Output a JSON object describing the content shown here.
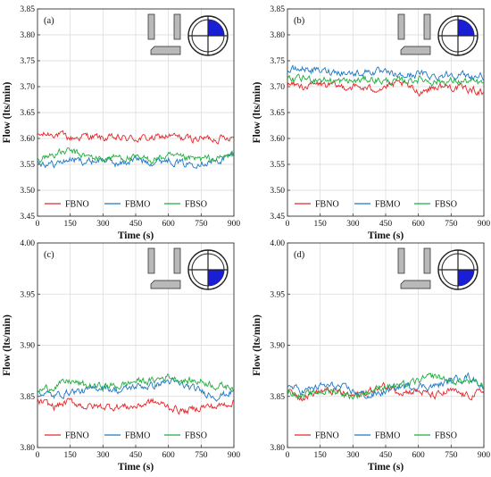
{
  "figure": {
    "line_colors": {
      "FBNO": "#e8262b",
      "FBMO": "#1f77c4",
      "FBSO": "#1fae3c"
    },
    "icon_colors": {
      "piece_fill": "#b9b9b9",
      "quadrant_fill": "#1a1fd6",
      "outline": "#222222"
    }
  },
  "chart_data": [
    {
      "type": "line",
      "panel_label": "(a)",
      "xlabel": "Time (s)",
      "ylabel": "Flow (lts/min)",
      "xlim": [
        0,
        900
      ],
      "ylim": [
        3.45,
        3.85
      ],
      "x_ticks": [
        "0",
        "150",
        "300",
        "450",
        "600",
        "750",
        "900"
      ],
      "y_ticks": [
        "3.45",
        "3.50",
        "3.55",
        "3.60",
        "3.65",
        "3.70",
        "3.75",
        "3.80",
        "3.85"
      ],
      "grid": true,
      "legend_position": "bottom",
      "icon_highlight": "upper-right quadrant",
      "x": [
        0,
        75,
        150,
        225,
        300,
        375,
        450,
        525,
        600,
        675,
        750,
        825,
        900
      ],
      "series": [
        {
          "name": "FBNO",
          "values": [
            3.605,
            3.61,
            3.6,
            3.605,
            3.6,
            3.6,
            3.6,
            3.6,
            3.605,
            3.6,
            3.6,
            3.6,
            3.605
          ]
        },
        {
          "name": "FBMO",
          "values": [
            3.555,
            3.55,
            3.56,
            3.555,
            3.56,
            3.55,
            3.56,
            3.555,
            3.56,
            3.55,
            3.555,
            3.555,
            3.57
          ]
        },
        {
          "name": "FBSO",
          "values": [
            3.56,
            3.57,
            3.575,
            3.565,
            3.56,
            3.565,
            3.56,
            3.56,
            3.565,
            3.56,
            3.56,
            3.56,
            3.57
          ]
        }
      ]
    },
    {
      "type": "line",
      "panel_label": "(b)",
      "xlabel": "Time (s)",
      "ylabel": "Flow (lts/min)",
      "xlim": [
        0,
        900
      ],
      "ylim": [
        3.45,
        3.85
      ],
      "x_ticks": [
        "0",
        "150",
        "300",
        "450",
        "600",
        "750",
        "900"
      ],
      "y_ticks": [
        "3.45",
        "3.50",
        "3.55",
        "3.60",
        "3.65",
        "3.70",
        "3.75",
        "3.80",
        "3.85"
      ],
      "grid": true,
      "legend_position": "bottom",
      "icon_highlight": "upper-right quadrant",
      "x": [
        0,
        75,
        150,
        225,
        300,
        375,
        450,
        525,
        600,
        675,
        750,
        825,
        900
      ],
      "series": [
        {
          "name": "FBNO",
          "values": [
            3.705,
            3.7,
            3.705,
            3.7,
            3.7,
            3.695,
            3.7,
            3.705,
            3.69,
            3.7,
            3.7,
            3.695,
            3.69
          ]
        },
        {
          "name": "FBMO",
          "values": [
            3.73,
            3.735,
            3.73,
            3.73,
            3.725,
            3.73,
            3.725,
            3.72,
            3.725,
            3.72,
            3.725,
            3.72,
            3.72
          ]
        },
        {
          "name": "FBSO",
          "values": [
            3.71,
            3.715,
            3.715,
            3.71,
            3.71,
            3.715,
            3.71,
            3.71,
            3.715,
            3.71,
            3.71,
            3.71,
            3.705
          ]
        }
      ]
    },
    {
      "type": "line",
      "panel_label": "(c)",
      "xlabel": "Time (s)",
      "ylabel": "Flow (lts/min)",
      "xlim": [
        0,
        900
      ],
      "ylim": [
        3.8,
        4.0
      ],
      "x_ticks": [
        "0",
        "150",
        "300",
        "450",
        "600",
        "750",
        "900"
      ],
      "y_ticks": [
        "3.80",
        "3.85",
        "3.90",
        "3.95",
        "4.00"
      ],
      "grid": true,
      "legend_position": "bottom",
      "icon_highlight": "lower-right quadrant",
      "x": [
        0,
        75,
        150,
        225,
        300,
        375,
        450,
        525,
        600,
        675,
        750,
        825,
        900
      ],
      "series": [
        {
          "name": "FBNO",
          "values": [
            3.845,
            3.84,
            3.845,
            3.84,
            3.84,
            3.84,
            3.84,
            3.845,
            3.84,
            3.835,
            3.84,
            3.84,
            3.845
          ]
        },
        {
          "name": "FBMO",
          "values": [
            3.855,
            3.85,
            3.855,
            3.855,
            3.86,
            3.855,
            3.86,
            3.86,
            3.865,
            3.86,
            3.855,
            3.85,
            3.855
          ]
        },
        {
          "name": "FBSO",
          "values": [
            3.855,
            3.86,
            3.865,
            3.86,
            3.86,
            3.86,
            3.865,
            3.865,
            3.87,
            3.865,
            3.865,
            3.86,
            3.86
          ]
        }
      ]
    },
    {
      "type": "line",
      "panel_label": "(d)",
      "xlabel": "Time (s)",
      "ylabel": "Flow (lts/min)",
      "xlim": [
        0,
        900
      ],
      "ylim": [
        3.8,
        4.0
      ],
      "x_ticks": [
        "0",
        "150",
        "300",
        "450",
        "600",
        "750",
        "900"
      ],
      "y_ticks": [
        "3.80",
        "3.85",
        "3.90",
        "3.95",
        "4.00"
      ],
      "grid": true,
      "legend_position": "bottom",
      "icon_highlight": "lower-right quadrant",
      "x": [
        0,
        75,
        150,
        225,
        300,
        375,
        450,
        525,
        600,
        675,
        750,
        825,
        900
      ],
      "series": [
        {
          "name": "FBNO",
          "values": [
            3.855,
            3.85,
            3.855,
            3.855,
            3.85,
            3.855,
            3.86,
            3.855,
            3.855,
            3.85,
            3.855,
            3.85,
            3.855
          ]
        },
        {
          "name": "FBMO",
          "values": [
            3.86,
            3.855,
            3.86,
            3.86,
            3.855,
            3.85,
            3.855,
            3.86,
            3.86,
            3.86,
            3.865,
            3.87,
            3.86
          ]
        },
        {
          "name": "FBSO",
          "values": [
            3.855,
            3.85,
            3.855,
            3.855,
            3.85,
            3.855,
            3.86,
            3.86,
            3.865,
            3.87,
            3.865,
            3.865,
            3.86
          ]
        }
      ]
    }
  ]
}
